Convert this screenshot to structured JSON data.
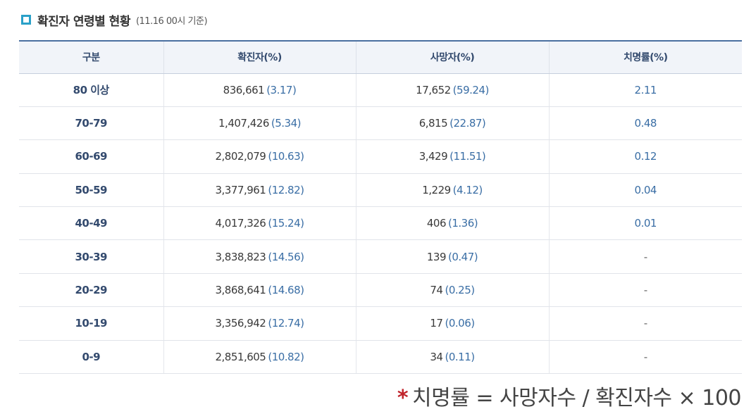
{
  "header": {
    "title": "확진자 연령별 현황",
    "subtitle": "(11.16 00시 기준)",
    "marker_color": "#2aa0c8"
  },
  "table": {
    "columns": [
      "구분",
      "확진자(%)",
      "사망자(%)",
      "치명률(%)"
    ],
    "rows": [
      {
        "group": "80 이상",
        "cases": "836,661",
        "cases_pct": "(3.17)",
        "deaths": "17,652",
        "deaths_pct": "(59.24)",
        "fatality": "2.11"
      },
      {
        "group": "70-79",
        "cases": "1,407,426",
        "cases_pct": "(5.34)",
        "deaths": "6,815",
        "deaths_pct": "(22.87)",
        "fatality": "0.48"
      },
      {
        "group": "60-69",
        "cases": "2,802,079",
        "cases_pct": "(10.63)",
        "deaths": "3,429",
        "deaths_pct": "(11.51)",
        "fatality": "0.12"
      },
      {
        "group": "50-59",
        "cases": "3,377,961",
        "cases_pct": "(12.82)",
        "deaths": "1,229",
        "deaths_pct": "(4.12)",
        "fatality": "0.04"
      },
      {
        "group": "40-49",
        "cases": "4,017,326",
        "cases_pct": "(15.24)",
        "deaths": "406",
        "deaths_pct": "(1.36)",
        "fatality": "0.01"
      },
      {
        "group": "30-39",
        "cases": "3,838,823",
        "cases_pct": "(14.56)",
        "deaths": "139",
        "deaths_pct": "(0.47)",
        "fatality": "-"
      },
      {
        "group": "20-29",
        "cases": "3,868,641",
        "cases_pct": "(14.68)",
        "deaths": "74",
        "deaths_pct": "(0.25)",
        "fatality": "-"
      },
      {
        "group": "10-19",
        "cases": "3,356,942",
        "cases_pct": "(12.74)",
        "deaths": "17",
        "deaths_pct": "(0.06)",
        "fatality": "-"
      },
      {
        "group": "0-9",
        "cases": "2,851,605",
        "cases_pct": "(10.82)",
        "deaths": "34",
        "deaths_pct": "(0.11)",
        "fatality": "-"
      }
    ]
  },
  "footnote": {
    "star": "*",
    "text": "치명률 = 사망자수 / 확진자수 × 100"
  }
}
